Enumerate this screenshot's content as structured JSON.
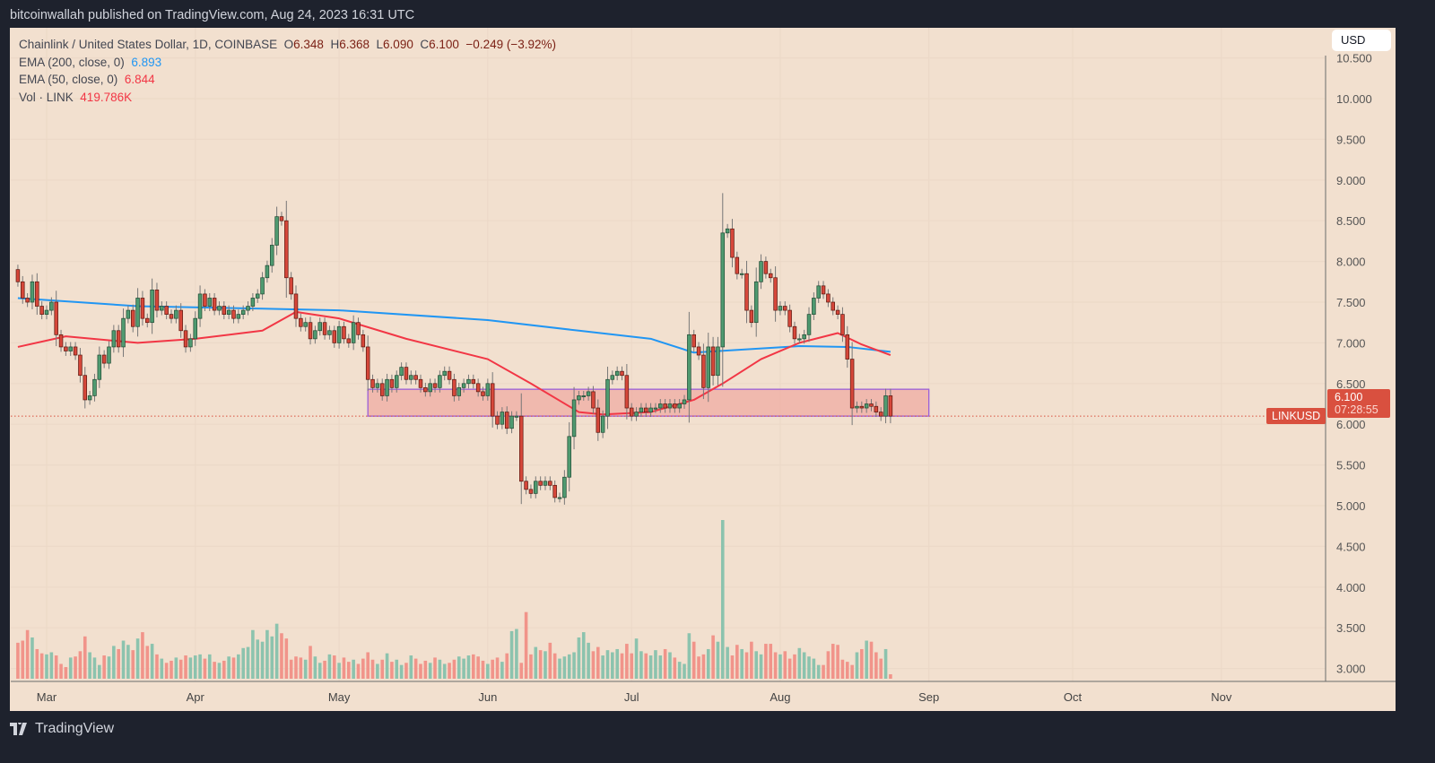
{
  "header": {
    "published": "bitcoinwallah published on TradingView.com, Aug 24, 2023 16:31 UTC"
  },
  "legend": {
    "symbol": "Chainlink / United States Dollar, 1D, COINBASE",
    "o_label": "O",
    "o": "6.348",
    "h_label": "H",
    "h": "6.368",
    "l_label": "L",
    "l": "6.090",
    "c_label": "C",
    "c": "6.100",
    "change": "−0.249 (−3.92%)",
    "ema200_label": "EMA (200, close, 0)",
    "ema200_value": "6.893",
    "ema50_label": "EMA (50, close, 0)",
    "ema50_value": "6.844",
    "vol_label": "Vol · LINK",
    "vol_value": "419.786K"
  },
  "currency_button": "USD",
  "price_label": {
    "symbol": "LINKUSD",
    "price": "6.100",
    "countdown": "07:28:55"
  },
  "footer": {
    "brand": "TradingView"
  },
  "colors": {
    "background": "#f2e0cf",
    "up": "#4f9a70",
    "down": "#d6473a",
    "vol_up": "#8cc3ae",
    "vol_down": "#f1948a",
    "ema200": "#2196f3",
    "ema50": "#f23645",
    "zone_border": "#9b5fd8",
    "zone_fill": "#f0a8a0",
    "price_line": "#d9503f"
  },
  "chart_data": {
    "type": "candlestick",
    "interval": "1D",
    "first_date": "2023-02-23",
    "ylim": [
      2.8,
      10.5
    ],
    "grid": true,
    "y_ticks": [
      "3.000",
      "3.500",
      "4.000",
      "4.500",
      "5.000",
      "5.500",
      "6.000",
      "6.500",
      "7.000",
      "7.500",
      "8.000",
      "8.500",
      "9.000",
      "9.500",
      "10.000",
      "10.500"
    ],
    "x_ticks": [
      {
        "label": "Mar",
        "date": "2023-03-01"
      },
      {
        "label": "Apr",
        "date": "2023-04-01"
      },
      {
        "label": "May",
        "date": "2023-05-01"
      },
      {
        "label": "Jun",
        "date": "2023-06-01"
      },
      {
        "label": "Jul",
        "date": "2023-07-01"
      },
      {
        "label": "Aug",
        "date": "2023-08-01"
      },
      {
        "label": "Sep",
        "date": "2023-09-01"
      },
      {
        "label": "Oct",
        "date": "2023-10-01"
      },
      {
        "label": "Nov",
        "date": "2023-11-01"
      }
    ],
    "x_end_date": "2023-11-27",
    "first_open": 7.9,
    "close": [
      7.75,
      7.55,
      7.5,
      7.75,
      7.45,
      7.35,
      7.4,
      7.5,
      7.1,
      6.95,
      6.9,
      6.95,
      6.85,
      6.6,
      6.3,
      6.35,
      6.55,
      6.85,
      6.75,
      6.95,
      7.15,
      6.95,
      7.3,
      7.4,
      7.2,
      7.55,
      7.3,
      7.25,
      7.65,
      7.4,
      7.45,
      7.35,
      7.3,
      7.4,
      7.15,
      6.95,
      7.05,
      7.3,
      7.6,
      7.45,
      7.55,
      7.4,
      7.45,
      7.35,
      7.4,
      7.3,
      7.35,
      7.4,
      7.45,
      7.55,
      7.6,
      7.8,
      7.95,
      8.2,
      8.55,
      8.5,
      7.8,
      7.6,
      7.3,
      7.2,
      7.25,
      7.05,
      7.15,
      7.25,
      7.1,
      7.15,
      7.0,
      7.2,
      7.05,
      7.0,
      7.25,
      7.1,
      6.95,
      6.55,
      6.45,
      6.5,
      6.35,
      6.55,
      6.45,
      6.6,
      6.7,
      6.55,
      6.6,
      6.55,
      6.45,
      6.4,
      6.5,
      6.45,
      6.6,
      6.65,
      6.55,
      6.35,
      6.45,
      6.5,
      6.55,
      6.5,
      6.4,
      6.35,
      6.5,
      6.1,
      6.0,
      6.15,
      5.95,
      6.1,
      6.1,
      5.3,
      5.2,
      5.15,
      5.3,
      5.25,
      5.3,
      5.25,
      5.1,
      5.1,
      5.35,
      5.85,
      6.3,
      6.35,
      6.35,
      6.4,
      6.2,
      5.9,
      6.1,
      6.55,
      6.6,
      6.65,
      6.6,
      6.2,
      6.1,
      6.15,
      6.2,
      6.15,
      6.2,
      6.2,
      6.25,
      6.2,
      6.25,
      6.2,
      6.25,
      6.3,
      7.1,
      6.95,
      6.85,
      6.45,
      6.95,
      6.6,
      6.95,
      8.35,
      8.4,
      8.05,
      7.85,
      7.85,
      7.4,
      7.25,
      7.75,
      8.0,
      7.85,
      7.8,
      7.4,
      7.45,
      7.4,
      7.2,
      7.05,
      7.05,
      7.1,
      7.35,
      7.55,
      7.7,
      7.6,
      7.5,
      7.4,
      7.35,
      7.1,
      6.8,
      6.2,
      6.22,
      6.2,
      6.25,
      6.22,
      6.15,
      6.1,
      6.35,
      6.1
    ],
    "volume_k": [
      3400,
      3600,
      4600,
      3900,
      2800,
      2400,
      2300,
      2500,
      2200,
      1400,
      1100,
      2000,
      2100,
      2600,
      4000,
      2500,
      2000,
      1300,
      2200,
      2100,
      3100,
      2800,
      3600,
      3200,
      2700,
      3800,
      4400,
      3100,
      3300,
      2300,
      1900,
      1500,
      1700,
      2000,
      1800,
      2200,
      2000,
      2200,
      2300,
      1900,
      2300,
      1600,
      1500,
      1700,
      2100,
      2000,
      2300,
      2900,
      3000,
      4600,
      3700,
      3500,
      4600,
      4000,
      5200,
      4300,
      3800,
      1800,
      2100,
      2000,
      1800,
      3100,
      2100,
      1500,
      1700,
      2300,
      2200,
      1500,
      2000,
      1600,
      1800,
      1400,
      1900,
      2500,
      1800,
      1400,
      1800,
      2400,
      1600,
      1800,
      1300,
      1500,
      2200,
      1900,
      1400,
      1700,
      1500,
      2000,
      1800,
      1400,
      1500,
      1800,
      2100,
      1900,
      2200,
      2300,
      2100,
      1700,
      1400,
      1800,
      2000,
      1600,
      2400,
      4500,
      4700,
      1500,
      6300,
      2300,
      3000,
      2700,
      2600,
      3400,
      2400,
      1900,
      2100,
      2300,
      2500,
      3900,
      4400,
      3400,
      2600,
      3000,
      2200,
      2700,
      2500,
      2800,
      2400,
      3300,
      2400,
      3800,
      2600,
      2400,
      2200,
      2700,
      2200,
      2800,
      2500,
      2000,
      1600,
      1400,
      4300,
      3500,
      2100,
      2300,
      2800,
      4100,
      3500,
      15000,
      3000,
      2200,
      3200,
      2800,
      2500,
      3500,
      2600,
      2300,
      3300,
      3300,
      2500,
      2300,
      2600,
      1900,
      2300,
      2900,
      2500,
      2100,
      1900,
      1300,
      1300,
      2600,
      3300,
      3200,
      1800,
      1600,
      1300,
      2500,
      2800,
      3600,
      3500,
      2500,
      1900,
      2800,
      420
    ],
    "ema200": [
      [
        "2023-02-23",
        7.55
      ],
      [
        "2023-03-20",
        7.45
      ],
      [
        "2023-04-15",
        7.42
      ],
      [
        "2023-05-01",
        7.4
      ],
      [
        "2023-06-01",
        7.28
      ],
      [
        "2023-06-20",
        7.15
      ],
      [
        "2023-07-05",
        7.05
      ],
      [
        "2023-07-14",
        6.88
      ],
      [
        "2023-07-25",
        6.92
      ],
      [
        "2023-08-05",
        6.96
      ],
      [
        "2023-08-15",
        6.95
      ],
      [
        "2023-08-24",
        6.89
      ]
    ],
    "ema50": [
      [
        "2023-02-23",
        6.95
      ],
      [
        "2023-03-05",
        7.08
      ],
      [
        "2023-03-20",
        7.0
      ],
      [
        "2023-04-01",
        7.05
      ],
      [
        "2023-04-15",
        7.15
      ],
      [
        "2023-04-22",
        7.38
      ],
      [
        "2023-05-01",
        7.3
      ],
      [
        "2023-05-15",
        7.05
      ],
      [
        "2023-06-01",
        6.8
      ],
      [
        "2023-06-10",
        6.5
      ],
      [
        "2023-06-20",
        6.15
      ],
      [
        "2023-06-25",
        6.12
      ],
      [
        "2023-07-05",
        6.15
      ],
      [
        "2023-07-14",
        6.3
      ],
      [
        "2023-07-20",
        6.5
      ],
      [
        "2023-07-28",
        6.8
      ],
      [
        "2023-08-05",
        7.0
      ],
      [
        "2023-08-13",
        7.12
      ],
      [
        "2023-08-18",
        6.98
      ],
      [
        "2023-08-24",
        6.85
      ]
    ],
    "zone": {
      "from": "2023-05-07",
      "to": "2023-09-01",
      "top": 6.43,
      "bottom": 6.1
    },
    "last_price": 6.1
  }
}
